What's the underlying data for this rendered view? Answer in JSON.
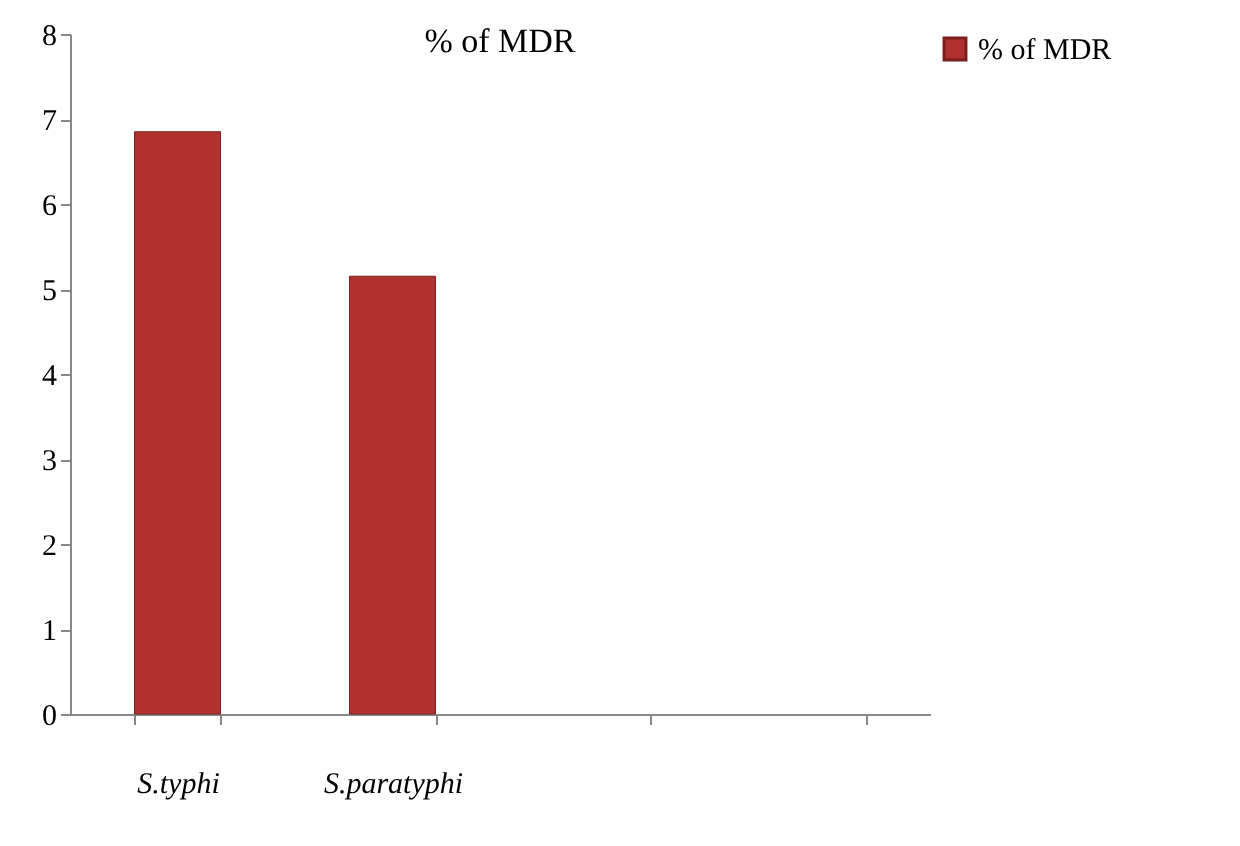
{
  "chart_data": {
    "type": "bar",
    "title": "% of MDR",
    "categories": [
      "S.typhi",
      "S.paratyphi",
      null,
      null
    ],
    "series": [
      {
        "name": "% of MDR",
        "color": "#b03230",
        "values": [
          6.85,
          5.15,
          null,
          null
        ]
      }
    ],
    "ylim": [
      0,
      8
    ],
    "yticks": [
      0,
      1,
      2,
      3,
      4,
      5,
      6,
      7,
      8
    ],
    "grid": false,
    "legend": "right"
  }
}
